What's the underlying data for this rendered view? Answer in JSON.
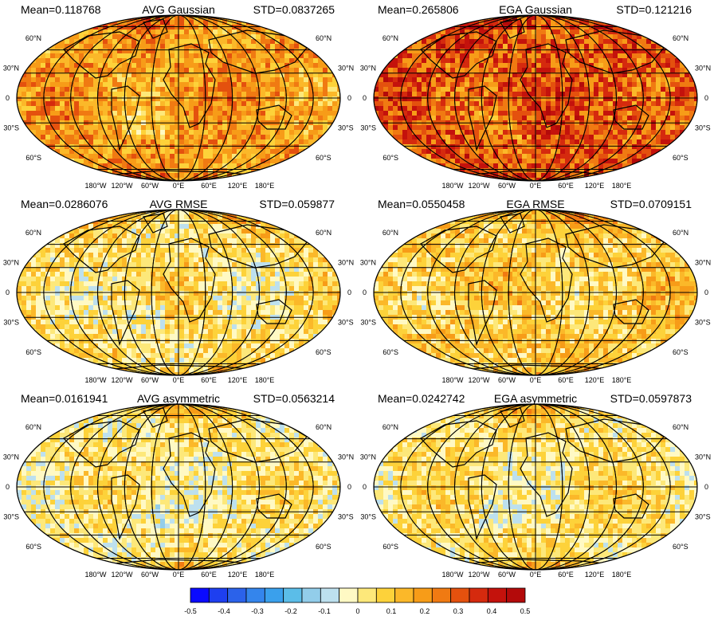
{
  "panels": [
    {
      "mean": "Mean=0.118768",
      "title": "AVG Gaussian",
      "std": "STD=0.0837265",
      "bias": 0.18,
      "amp": 0.11
    },
    {
      "mean": "Mean=0.265806",
      "title": "EGA Gaussian",
      "std": "STD=0.121216",
      "bias": 0.3,
      "amp": 0.13
    },
    {
      "mean": "Mean=0.0286076",
      "title": "AVG RMSE",
      "std": "STD=0.059877",
      "bias": 0.05,
      "amp": 0.1
    },
    {
      "mean": "Mean=0.0550458",
      "title": "EGA RMSE",
      "std": "STD=0.0709151",
      "bias": 0.09,
      "amp": 0.1
    },
    {
      "mean": "Mean=0.0161941",
      "title": "AVG asymmetric",
      "std": "STD=0.0563214",
      "bias": 0.03,
      "amp": 0.09
    },
    {
      "mean": "Mean=0.0242742",
      "title": "EGA asymmetric",
      "std": "STD=0.0597873",
      "bias": 0.045,
      "amp": 0.09
    }
  ],
  "lat_labels": {
    "left": [
      "60°N",
      "30°N",
      "0",
      "30°S",
      "60°S"
    ],
    "right": [
      "60°N",
      "30°N",
      "0",
      "30°S",
      "60°S"
    ]
  },
  "lon_labels": [
    "180°W",
    "120°W",
    "60°W",
    "0°E",
    "60°E",
    "120°E",
    "180°E"
  ],
  "colorbar": {
    "ticks": [
      "-0.5",
      "-0.4",
      "-0.3",
      "-0.2",
      "-0.1",
      "0",
      "0.1",
      "0.2",
      "0.3",
      "0.4",
      "0.5"
    ],
    "colors": [
      "#0a0aff",
      "#1e3ff0",
      "#2b62ea",
      "#3485ec",
      "#3aa0ec",
      "#5bbde8",
      "#92cdea",
      "#bde0ee",
      "#fff9c4",
      "#fde87a",
      "#fdd23a",
      "#fbb829",
      "#f79c18",
      "#f07a12",
      "#e4510e",
      "#d52a0e",
      "#c4120c",
      "#b30a0a"
    ]
  }
}
